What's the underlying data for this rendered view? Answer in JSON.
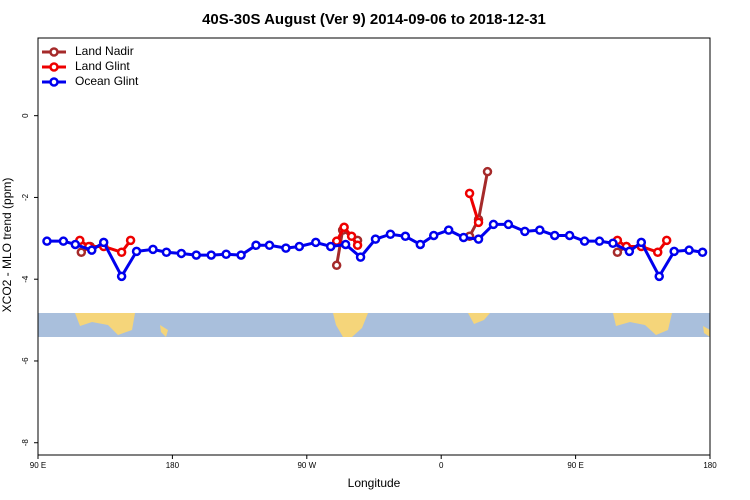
{
  "chart_data": {
    "type": "line",
    "title": "40S-30S August (Ver 9)   2014-09-06 to 2018-12-31",
    "x_label": "Longitude",
    "y_label": "XCO2 - MLO trend (ppm)",
    "xlim": [
      90,
      540
    ],
    "ylim": [
      -8.3,
      1.9
    ],
    "xticks": [
      {
        "value": 90,
        "label": "90 E"
      },
      {
        "value": 180,
        "label": "180"
      },
      {
        "value": 270,
        "label": "90 W"
      },
      {
        "value": 360,
        "label": "0"
      },
      {
        "value": 450,
        "label": "90 E"
      },
      {
        "value": 540,
        "label": "180"
      }
    ],
    "yticks": [
      0,
      -2,
      -4,
      -6,
      -8
    ],
    "legend": "top-left",
    "series": [
      {
        "name": "Land Nadir",
        "color": "#a52a2a",
        "x": [
          119,
          125,
          null,
          290,
          294,
          304,
          null,
          379,
          385,
          391,
          null,
          478,
          484
        ],
        "values": [
          -3.34,
          -3.2,
          null,
          -3.66,
          -2.8,
          -3.05,
          null,
          -2.95,
          -2.54,
          -1.37,
          null,
          -3.34,
          -3.2
        ]
      },
      {
        "name": "Land Glint",
        "color": "#ee0000",
        "x": [
          118,
          124,
          134,
          146,
          152,
          null,
          290,
          295,
          300,
          304,
          null,
          379,
          385,
          null,
          478,
          484,
          494,
          505,
          511
        ],
        "values": [
          -3.05,
          -3.2,
          -3.2,
          -3.34,
          -3.05,
          null,
          -3.07,
          -2.73,
          -2.95,
          -3.17,
          null,
          -1.9,
          -2.61,
          null,
          -3.05,
          -3.2,
          -3.2,
          -3.34,
          -3.05
        ]
      },
      {
        "name": "Ocean Glint",
        "color": "#0000ee",
        "x": [
          96,
          107,
          115,
          126,
          134,
          146,
          156,
          167,
          176,
          186,
          196,
          206,
          216,
          226,
          236,
          245,
          256,
          265,
          276,
          286,
          296,
          306,
          316,
          326,
          336,
          346,
          355,
          365,
          375,
          385,
          395,
          405,
          416,
          426,
          436,
          446,
          456,
          466,
          475,
          486,
          494,
          506,
          516,
          526,
          535
        ],
        "values": [
          -3.07,
          -3.07,
          -3.15,
          -3.29,
          -3.1,
          -3.93,
          -3.32,
          -3.27,
          -3.34,
          -3.37,
          -3.41,
          -3.41,
          -3.39,
          -3.41,
          -3.17,
          -3.17,
          -3.24,
          -3.2,
          -3.1,
          -3.2,
          -3.15,
          -3.46,
          -3.02,
          -2.9,
          -2.95,
          -3.15,
          -2.93,
          -2.8,
          -2.98,
          -3.02,
          -2.66,
          -2.66,
          -2.83,
          -2.8,
          -2.93,
          -2.93,
          -3.07,
          -3.07,
          -3.12,
          -3.32,
          -3.1,
          -3.93,
          -3.32,
          -3.29,
          -3.34
        ]
      }
    ]
  }
}
